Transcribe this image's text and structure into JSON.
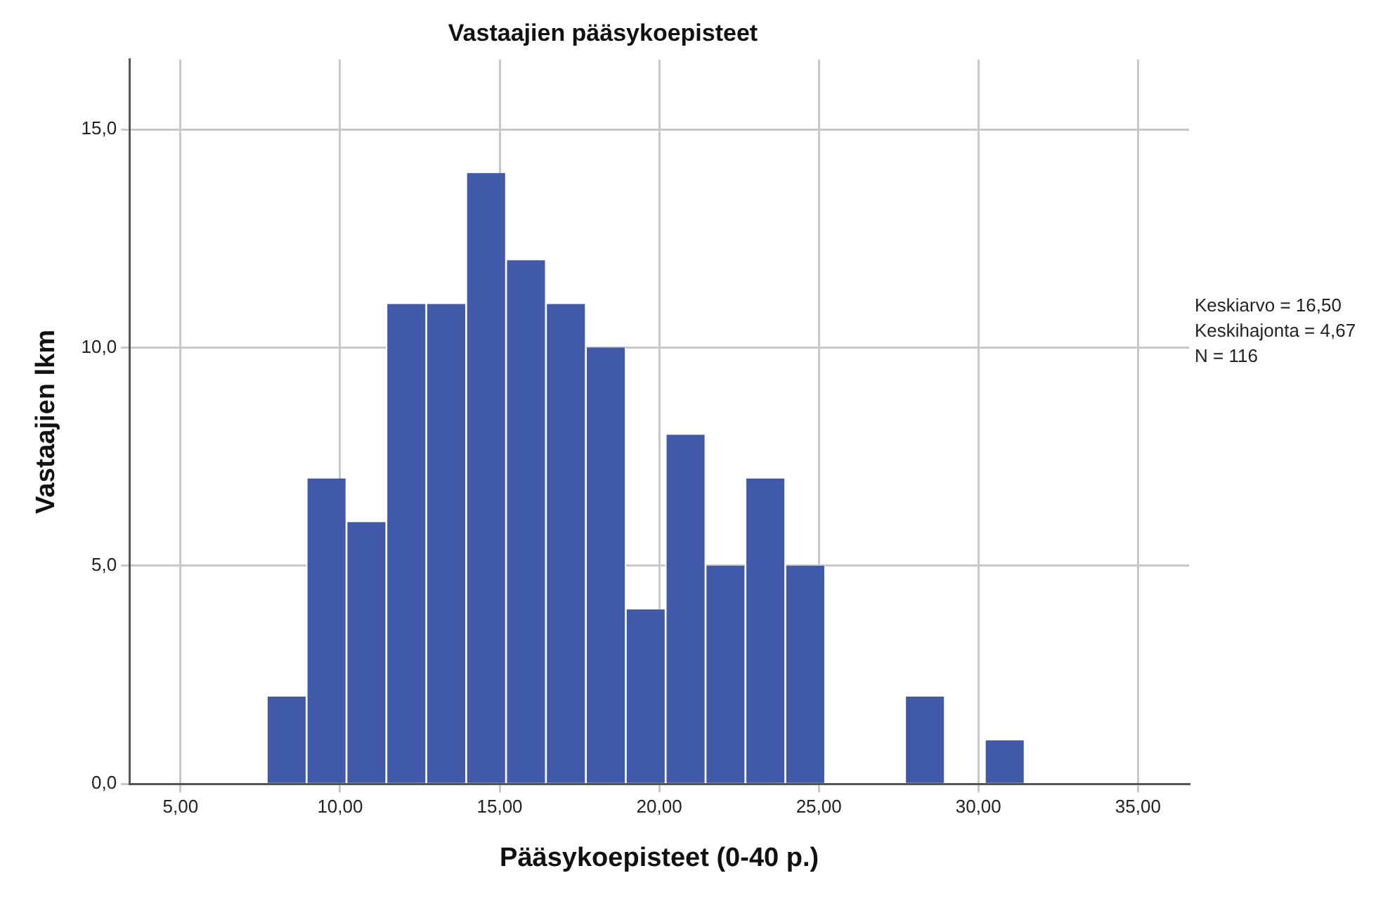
{
  "chart_data": {
    "type": "histogram",
    "title": "Vastaajien pääsykoepisteet",
    "xlabel": "Pääsykoepisteet (0-40 p.)",
    "ylabel": "Vastaajien lkm",
    "bins": [
      7.7,
      8.95,
      10.2,
      11.45,
      12.7,
      13.95,
      15.2,
      16.45,
      17.7,
      18.95,
      20.2,
      21.45,
      22.7,
      23.95,
      25.2,
      26.45,
      27.7,
      28.95,
      30.2,
      31.45
    ],
    "values": [
      2,
      7,
      6,
      11,
      11,
      14,
      12,
      11,
      10,
      4,
      8,
      5,
      7,
      5,
      0,
      0,
      2,
      0,
      1
    ],
    "color": "#4059a9",
    "xlim": [
      3.4,
      36.6
    ],
    "ylim": [
      0,
      16.6
    ],
    "xticks": [
      {
        "value": 5,
        "label": "5,00"
      },
      {
        "value": 10,
        "label": "10,00"
      },
      {
        "value": 15,
        "label": "15,00"
      },
      {
        "value": 20,
        "label": "20,00"
      },
      {
        "value": 25,
        "label": "25,00"
      },
      {
        "value": 30,
        "label": "30,00"
      },
      {
        "value": 35,
        "label": "35,00"
      }
    ],
    "yticks": [
      {
        "value": 0,
        "label": "0,0"
      },
      {
        "value": 5,
        "label": "5,0"
      },
      {
        "value": 10,
        "label": "10,0"
      },
      {
        "value": 15,
        "label": "15,0"
      }
    ],
    "grid": true,
    "legend": false,
    "annotations": [
      "Keskiarvo = 16,50",
      "Keskihajonta = 4,67",
      "N = 116"
    ]
  }
}
